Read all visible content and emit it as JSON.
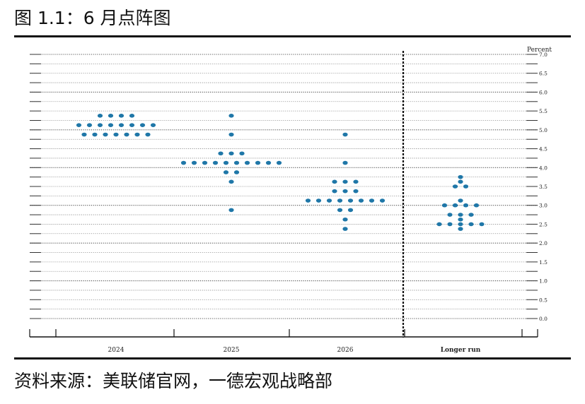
{
  "figure": {
    "title": "图 1.1：6 月点阵图",
    "source": "资料来源：美联储官网，一德宏观战略部"
  },
  "chart_data": {
    "type": "scatter",
    "ylabel": "Percent",
    "ylim": [
      0,
      7.0
    ],
    "ytick_step": 0.25,
    "ytick_labels": [
      "0.0",
      "0.5",
      "1.0",
      "1.5",
      "2.0",
      "2.5",
      "3.0",
      "3.5",
      "4.0",
      "4.5",
      "5.0",
      "5.5",
      "6.0",
      "6.5",
      "7.0"
    ],
    "categories": [
      "2024",
      "2025",
      "2026",
      "Longer run"
    ],
    "grid": "dotted",
    "dot_color": "#1f77a8",
    "series": [
      {
        "x": "2024",
        "points": [
          {
            "y": 5.375,
            "n": 4
          },
          {
            "y": 5.125,
            "n": 8
          },
          {
            "y": 4.875,
            "n": 7
          }
        ]
      },
      {
        "x": "2025",
        "points": [
          {
            "y": 5.375,
            "n": 1
          },
          {
            "y": 4.875,
            "n": 1
          },
          {
            "y": 4.375,
            "n": 3
          },
          {
            "y": 4.125,
            "n": 10
          },
          {
            "y": 3.875,
            "n": 2
          },
          {
            "y": 3.625,
            "n": 1
          },
          {
            "y": 2.875,
            "n": 1
          }
        ]
      },
      {
        "x": "2026",
        "points": [
          {
            "y": 4.875,
            "n": 1
          },
          {
            "y": 4.125,
            "n": 1
          },
          {
            "y": 3.625,
            "n": 3
          },
          {
            "y": 3.375,
            "n": 3
          },
          {
            "y": 3.125,
            "n": 8
          },
          {
            "y": 2.875,
            "n": 2
          },
          {
            "y": 2.625,
            "n": 1
          },
          {
            "y": 2.375,
            "n": 1
          }
        ]
      },
      {
        "x": "Longer run",
        "points": [
          {
            "y": 3.75,
            "n": 1
          },
          {
            "y": 3.625,
            "n": 1
          },
          {
            "y": 3.5,
            "n": 2
          },
          {
            "y": 3.125,
            "n": 1
          },
          {
            "y": 3.0,
            "n": 4
          },
          {
            "y": 2.75,
            "n": 3
          },
          {
            "y": 2.625,
            "n": 1
          },
          {
            "y": 2.5,
            "n": 5
          },
          {
            "y": 2.375,
            "n": 1
          }
        ]
      }
    ]
  }
}
